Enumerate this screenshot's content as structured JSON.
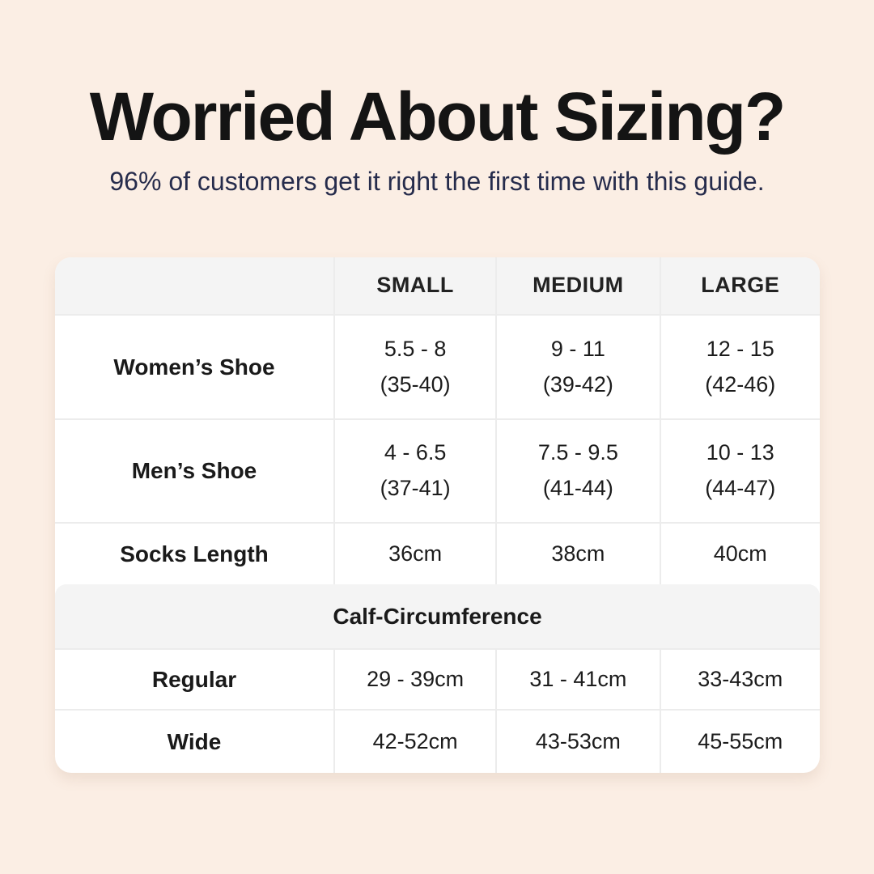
{
  "header": {
    "title": "Worried About Sizing?",
    "subtitle": "96% of customers get it right the first time with this guide."
  },
  "chart_data": {
    "type": "table",
    "title": "Worried About Sizing?",
    "columns": [
      "SMALL",
      "MEDIUM",
      "LARGE"
    ],
    "shoe_rows": [
      {
        "label": "Women’s Shoe",
        "cells": [
          {
            "range": "5.5 - 8",
            "eu": "(35-40)"
          },
          {
            "range": "9 - 11",
            "eu": "(39-42)"
          },
          {
            "range": "12 - 15",
            "eu": "(42-46)"
          }
        ]
      },
      {
        "label": "Men’s Shoe",
        "cells": [
          {
            "range": "4 - 6.5",
            "eu": "(37-41)"
          },
          {
            "range": "7.5 - 9.5",
            "eu": "(41-44)"
          },
          {
            "range": "10 - 13",
            "eu": "(44-47)"
          }
        ]
      }
    ],
    "socks_row": {
      "label": "Socks Length",
      "cells": [
        "36cm",
        "38cm",
        "40cm"
      ]
    },
    "section_header": "Calf-Circumference",
    "calf_rows": [
      {
        "label": "Regular",
        "cells": [
          "29 - 39cm",
          "31 - 41cm",
          "33-43cm"
        ]
      },
      {
        "label": "Wide",
        "cells": [
          "42-52cm",
          "43-53cm",
          "45-55cm"
        ]
      }
    ]
  },
  "colors": {
    "page_background": "#fbeee4",
    "subtitle_navy": "#262c4c",
    "title_black": "#141414",
    "table_background": "#ffffff",
    "table_band_gray": "#f4f4f4",
    "table_border": "#ececec"
  }
}
